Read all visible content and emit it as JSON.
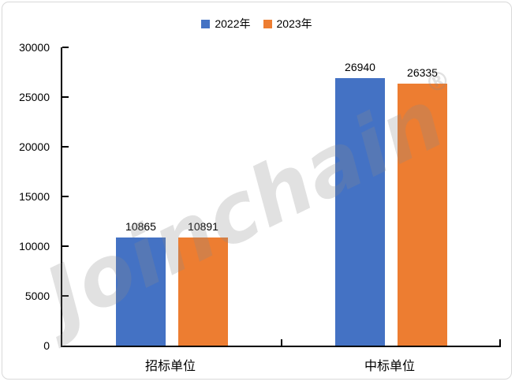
{
  "watermark": {
    "text": "Joinchain",
    "reg": "®"
  },
  "legend": {
    "items": [
      {
        "label": "2022年",
        "color": "#4472C4"
      },
      {
        "label": "2023年",
        "color": "#ED7D31"
      }
    ]
  },
  "chart_data": {
    "type": "bar",
    "title": "",
    "xlabel": "",
    "ylabel": "",
    "categories": [
      "招标单位",
      "中标单位"
    ],
    "series": [
      {
        "name": "2022年",
        "color": "#4472C4",
        "values": [
          10865,
          26940
        ]
      },
      {
        "name": "2023年",
        "color": "#ED7D31",
        "values": [
          10891,
          26335
        ]
      }
    ],
    "ylim": [
      0,
      30000
    ],
    "ytick_interval": 5000,
    "yticks": [
      "30000",
      "25000",
      "20000",
      "15000",
      "10000",
      "5000",
      "0"
    ],
    "grid": false,
    "legend_position": "top-center",
    "axis_color": "#000000",
    "border_color": "#D9D9D9",
    "data_labels_shown": true
  }
}
